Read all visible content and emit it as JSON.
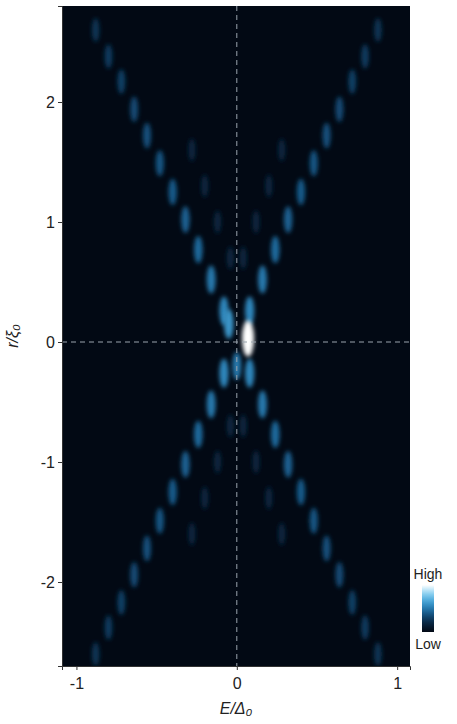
{
  "chart_data": {
    "type": "heatmap",
    "xlabel": "E/Δ₀",
    "ylabel": "r/ξ₀",
    "xlim": [
      -1.09,
      1.08
    ],
    "ylim": [
      -2.7,
      2.8
    ],
    "xticks": [
      -1,
      0,
      1
    ],
    "yticks": [
      -2,
      -1,
      0,
      1,
      2
    ],
    "reference_lines": {
      "x": [
        0
      ],
      "y": [
        0
      ]
    },
    "x": [
      0.08,
      0.16,
      0.24,
      0.32,
      0.4,
      0.48,
      0.56,
      0.64,
      0.72,
      0.8,
      0.88,
      -0.08,
      -0.16,
      -0.24,
      -0.32,
      -0.4,
      -0.48,
      -0.56,
      -0.64,
      -0.72,
      -0.8,
      -0.88,
      -0.08,
      -0.16,
      -0.24,
      -0.32,
      -0.4,
      -0.48,
      -0.56,
      -0.64,
      -0.72,
      -0.8,
      -0.88,
      0.08,
      0.16,
      0.24,
      0.32,
      0.4,
      0.48,
      0.56,
      0.64,
      0.72,
      0.8,
      0.88,
      0.04,
      0.12,
      0.2,
      0.28,
      -0.04,
      -0.12,
      -0.2,
      -0.28,
      0.04,
      0.12,
      0.2,
      0.28,
      -0.04,
      -0.12,
      -0.2,
      -0.28,
      0.07,
      -0.05,
      0.0
    ],
    "y": [
      0.26,
      0.52,
      0.77,
      1.02,
      1.25,
      1.49,
      1.72,
      1.94,
      2.17,
      2.38,
      2.6,
      0.26,
      0.52,
      0.77,
      1.02,
      1.25,
      1.49,
      1.72,
      1.94,
      2.17,
      2.38,
      2.6,
      -0.26,
      -0.52,
      -0.77,
      -1.02,
      -1.25,
      -1.49,
      -1.72,
      -1.94,
      -2.17,
      -2.38,
      -2.6,
      -0.26,
      -0.52,
      -0.77,
      -1.02,
      -1.25,
      -1.49,
      -1.72,
      -1.94,
      -2.17,
      -2.38,
      -2.6,
      0.7,
      1.0,
      1.3,
      1.6,
      0.7,
      1.0,
      1.3,
      1.6,
      -0.7,
      -1.0,
      -1.3,
      -1.6,
      -0.7,
      -1.0,
      -1.3,
      -1.6,
      0.03,
      0.15,
      -0.2
    ],
    "values": [
      0.55,
      0.5,
      0.45,
      0.42,
      0.4,
      0.38,
      0.36,
      0.34,
      0.3,
      0.28,
      0.25,
      0.55,
      0.5,
      0.45,
      0.42,
      0.4,
      0.38,
      0.36,
      0.34,
      0.3,
      0.28,
      0.25,
      0.55,
      0.5,
      0.45,
      0.42,
      0.4,
      0.38,
      0.36,
      0.34,
      0.3,
      0.28,
      0.25,
      0.55,
      0.5,
      0.45,
      0.42,
      0.4,
      0.38,
      0.36,
      0.34,
      0.3,
      0.28,
      0.25,
      0.18,
      0.18,
      0.18,
      0.18,
      0.18,
      0.18,
      0.18,
      0.18,
      0.18,
      0.18,
      0.18,
      0.18,
      0.18,
      0.18,
      0.18,
      0.18,
      1.0,
      0.6,
      0.5
    ],
    "colorbar": {
      "range": [
        0,
        1
      ],
      "ticks": [
        {
          "value": 0,
          "label": "Low"
        },
        {
          "value": 1,
          "label": "High"
        }
      ]
    }
  }
}
